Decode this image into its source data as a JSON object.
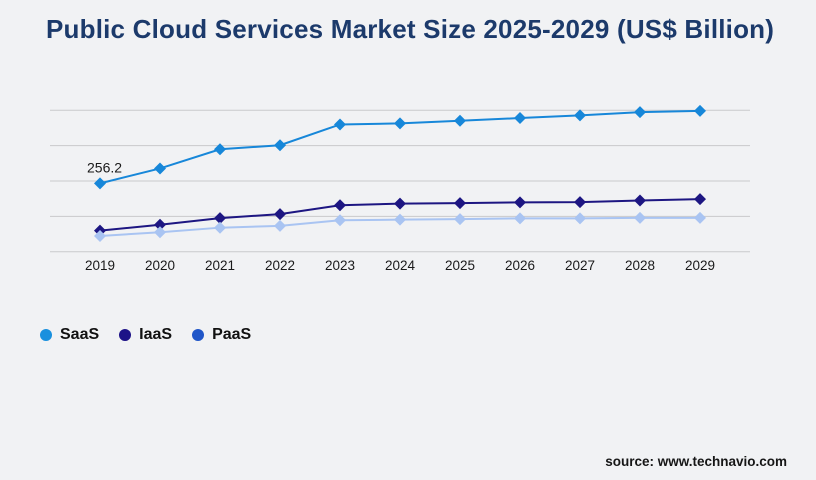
{
  "title": "Public Cloud Services Market Size 2025-2029 (US$ Billion)",
  "source": "source: www.technavio.com",
  "colors": {
    "background": "#f1f2f4",
    "title": "#1c3a6b",
    "gridline": "#c9c9cb",
    "axis_text": "#1a1a1a",
    "annotation_text": "#1a1a1a"
  },
  "chart_data": {
    "type": "line",
    "title": "Public Cloud Services Market Size 2025-2029 (US$ Billion)",
    "units": "US$ Billion",
    "x": [
      2019,
      2020,
      2021,
      2022,
      2023,
      2024,
      2025,
      2026,
      2027,
      2028,
      2029
    ],
    "series": [
      {
        "name": "SaaS",
        "color": "#1787d9",
        "legend_color": "#1990de",
        "values": [
          256.2,
          312,
          384,
          399,
          477,
          481,
          491,
          501,
          511,
          523,
          528
        ]
      },
      {
        "name": "IaaS",
        "color": "#1d1682",
        "legend_color": "#1d1287",
        "values": [
          79,
          101,
          126,
          141,
          174,
          180,
          182,
          185,
          186,
          192,
          197
        ]
      },
      {
        "name": "PaaS",
        "color": "#a9c4f2",
        "legend_color": "#2056c8",
        "values": [
          59,
          73,
          90,
          97,
          118,
          120,
          122,
          125,
          125,
          127,
          127
        ]
      }
    ],
    "annotations": [
      {
        "text": "256.2",
        "series": "SaaS",
        "x": 2019
      }
    ],
    "ylim": [
      0,
      530
    ],
    "gridline_count": 5,
    "grid": true,
    "legend_position": "bottom-left",
    "marker": "diamond",
    "note": "Only the 256.2 value is labeled on the chart; other values estimated from gridlines."
  }
}
